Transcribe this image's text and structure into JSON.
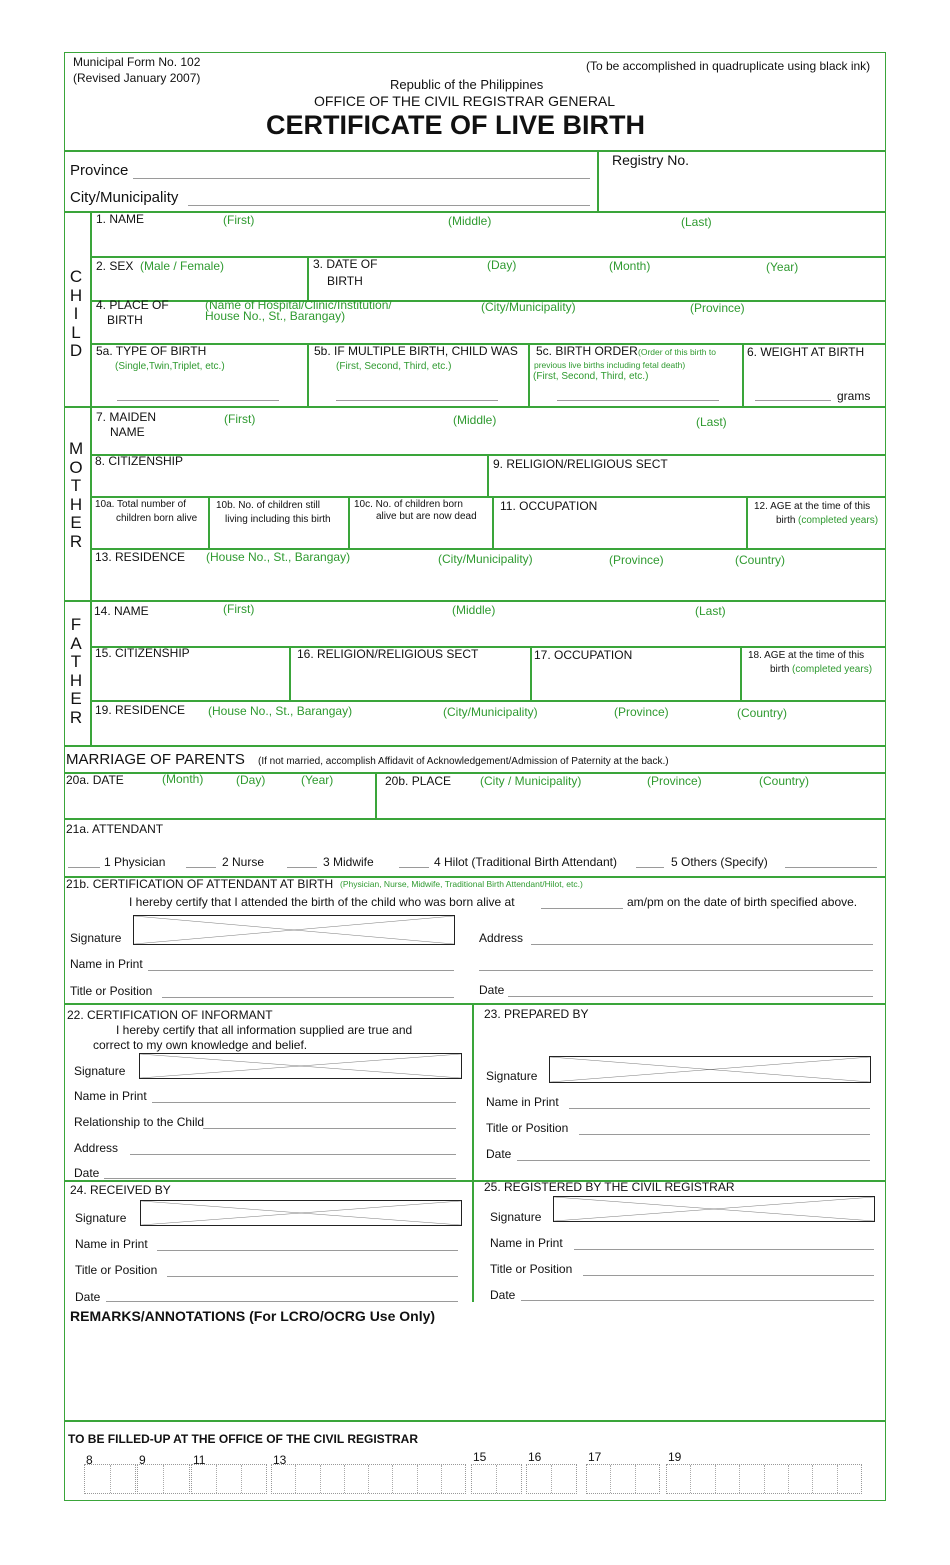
{
  "colors": {
    "accent": "#3aa53a",
    "label_green": "#2f9a30"
  },
  "header": {
    "form_no": "Municipal Form No. 102",
    "revised": "(Revised January 2007)",
    "instruction": "(To be accomplished in quadruplicate using black ink)",
    "republic": "Republic of the Philippines",
    "office": "OFFICE OF THE CIVIL REGISTRAR GENERAL",
    "title": "CERTIFICATE OF LIVE BIRTH"
  },
  "location": {
    "province": "Province",
    "city": "City/Municipality",
    "registry": "Registry No."
  },
  "child": {
    "side": [
      "C",
      "H",
      "I",
      "L",
      "D"
    ],
    "name": "1. NAME",
    "first": "(First)",
    "middle": "(Middle)",
    "last": "(Last)",
    "sex": "2. SEX",
    "sex_hint": "(Male / Female)",
    "dob1": "3. DATE OF",
    "dob2": "BIRTH",
    "day": "(Day)",
    "month": "(Month)",
    "year": "(Year)",
    "pob1": "4. PLACE OF",
    "pob2": "BIRTH",
    "pob_hint1": "(Name of Hospital/Clinic/Institution/",
    "pob_hint2": "House No., St., Barangay)",
    "city": "(City/Municipality)",
    "province": "(Province)",
    "type": "5a. TYPE OF BIRTH",
    "type_hint": "(Single,Twin,Triplet, etc.)",
    "multiple": "5b. IF MULTIPLE BIRTH, CHILD WAS",
    "multiple_hint": "(First, Second, Third, etc.)",
    "order": "5c. BIRTH ORDER",
    "order_hint1": "(Order of this birth to",
    "order_hint2": "previous live births including fetal death)",
    "order_hint3": "(First, Second, Third, etc.)",
    "weight": "6. WEIGHT AT BIRTH",
    "grams": "grams"
  },
  "mother": {
    "side": [
      "M",
      "O",
      "T",
      "H",
      "E",
      "R"
    ],
    "name1": "7. MAIDEN",
    "name2": "NAME",
    "first": "(First)",
    "middle": "(Middle)",
    "last": "(Last)",
    "citizenship": "8. CITIZENSHIP",
    "religion": "9. RELIGION/RELIGIOUS SECT",
    "c10a1": "10a. Total number of",
    "c10a2": "children born alive",
    "c10b1": "10b. No. of children still",
    "c10b2": "living including this birth",
    "c10c1": "10c. No. of children  born",
    "c10c2": "alive but are now dead",
    "occupation": "11. OCCUPATION",
    "age1": "12. AGE at the time of this",
    "age2": "birth",
    "age_hint": "(completed years)",
    "residence": "13. RESIDENCE",
    "res_hint": "(House No., St., Barangay)",
    "city": "(City/Municipality)",
    "province": "(Province)",
    "country": "(Country)"
  },
  "father": {
    "side": [
      "F",
      "A",
      "T",
      "H",
      "E",
      "R"
    ],
    "name": "14. NAME",
    "first": "(First)",
    "middle": "(Middle)",
    "last": "(Last)",
    "citizenship": "15. CITIZENSHIP",
    "religion": "16. RELIGION/RELIGIOUS SECT",
    "occupation": "17. OCCUPATION",
    "age1": "18.  AGE at the time of this",
    "age2": "birth",
    "age_hint": "(completed years)",
    "residence": "19.  RESIDENCE",
    "res_hint": "(House No., St., Barangay)",
    "city": "(City/Municipality)",
    "province": "(Province)",
    "country": "(Country)"
  },
  "marriage": {
    "title": "MARRIAGE OF PARENTS",
    "note": "(If not married, accomplish Affidavit of Acknowledgement/Admission of Paternity at the back.)",
    "date": "20a. DATE",
    "month": "(Month)",
    "day": "(Day)",
    "year": "(Year)",
    "place": "20b. PLACE",
    "city": "(City / Municipality)",
    "province": "(Province)",
    "country": "(Country)"
  },
  "attendant": {
    "title": "21a. ATTENDANT",
    "options": [
      "1  Physician",
      "2  Nurse",
      "3  Midwife",
      "4  Hilot (Traditional Birth Attendant)",
      "5  Others (Specify)"
    ]
  },
  "cert_attendant": {
    "title": "21b. CERTIFICATION OF ATTENDANT AT BIRTH",
    "hint": "(Physician, Nurse, Midwife, Traditional Birth Attendant/Hilot, etc.)",
    "text1": "I  hereby certify that I attended the birth of the child who was born alive at",
    "text2": "am/pm   on the date of birth specified above.",
    "signature": "Signature",
    "address": "Address",
    "name_print": "Name in Print",
    "title_position": "Title or Position",
    "date": "Date"
  },
  "informant": {
    "title": "22. CERTIFICATION OF INFORMANT",
    "text1": "I hereby certify that all information supplied are true and",
    "text2": "correct to my own knowledge and belief.",
    "signature": "Signature",
    "name_print": "Name in Print",
    "relationship": "Relationship to the Child",
    "address": "Address",
    "date": "Date"
  },
  "prepared": {
    "title": "23. PREPARED BY",
    "signature": "Signature",
    "name_print": "Name in Print",
    "title_position": "Title or Position",
    "date": "Date"
  },
  "received": {
    "title": "24. RECEIVED BY",
    "signature": "Signature",
    "name_print": "Name in Print",
    "title_position": "Title or Position",
    "date": "Date"
  },
  "registered": {
    "title": "25. REGISTERED BY THE CIVIL REGISTRAR",
    "signature": "Signature",
    "name_print": "Name in Print",
    "title_position": "Title or Position",
    "date": "Date"
  },
  "remarks": {
    "title": "REMARKS/ANNOTATIONS (For LCRO/OCRG Use Only)"
  },
  "office": {
    "title": "TO BE FILLED-UP AT THE OFFICE OF THE CIVIL REGISTRAR",
    "codes": [
      {
        "label": "8",
        "boxes": 2
      },
      {
        "label": "9",
        "boxes": 2
      },
      {
        "label": "11",
        "boxes": 3
      },
      {
        "label": "13",
        "boxes": 8
      },
      {
        "label": "15",
        "boxes": 2
      },
      {
        "label": "16",
        "boxes": 2
      },
      {
        "label": "17",
        "boxes": 3
      },
      {
        "label": "19",
        "boxes": 8
      }
    ]
  }
}
